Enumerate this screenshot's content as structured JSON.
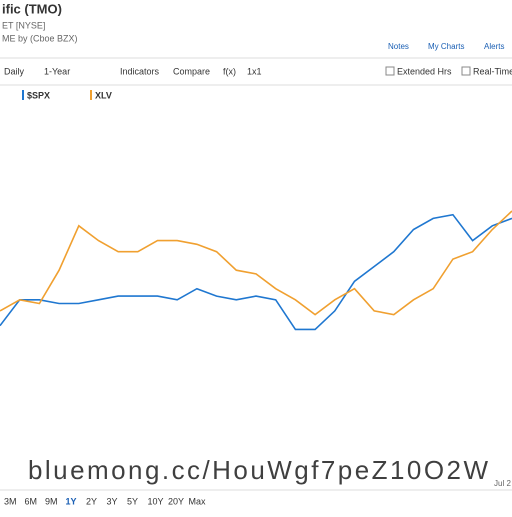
{
  "header": {
    "title": "ific (TMO)",
    "exchange": "ET [NYSE]",
    "source": "ME by (Cboe BZX)",
    "links": [
      "Notes",
      "My Charts",
      "Alerts"
    ]
  },
  "toolbar": {
    "items": [
      "Daily",
      "1-Year",
      "Indicators",
      "Compare",
      "f(x)",
      "1x1"
    ],
    "checks": [
      "Extended Hrs",
      "Real-Time"
    ]
  },
  "chart_data": {
    "type": "line",
    "ylim": [
      0,
      100
    ],
    "series": [
      {
        "name": "$SPX",
        "color": "#1f77d0",
        "values": [
          39,
          46,
          46,
          45,
          45,
          46,
          47,
          47,
          47,
          46,
          49,
          47,
          46,
          47,
          46,
          38,
          38,
          43,
          51,
          55,
          59,
          65,
          68,
          69,
          62,
          66,
          68
        ]
      },
      {
        "name": "XLV",
        "color": "#f0a030",
        "values": [
          43,
          46,
          45,
          54,
          66,
          62,
          59,
          59,
          62,
          62,
          61,
          59,
          54,
          53,
          49,
          46,
          42,
          46,
          49,
          43,
          42,
          46,
          49,
          57,
          59,
          65,
          70
        ]
      }
    ]
  },
  "x_label": "Jul 2",
  "ranges": [
    "3M",
    "6M",
    "9M",
    "1Y",
    "2Y",
    "3Y",
    "5Y",
    "10Y",
    "20Y",
    "Max"
  ],
  "watermark": "bluemong.cc/HouWgf7peZ10O2W"
}
